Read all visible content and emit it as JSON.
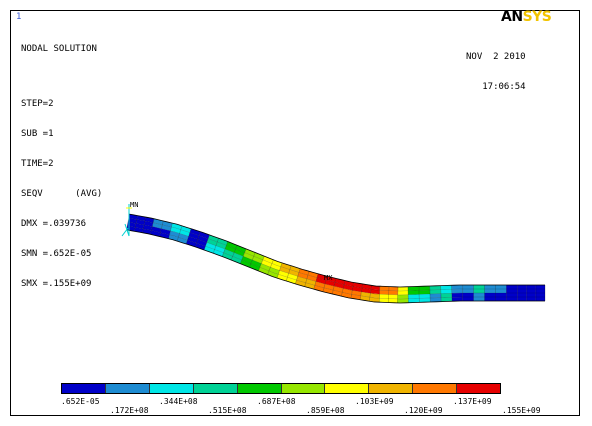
{
  "window_number": "1",
  "logo": {
    "part1": "AN",
    "part2": "SYS"
  },
  "solution": {
    "title": "NODAL SOLUTION",
    "lines": [
      "STEP=2",
      "SUB =1",
      "TIME=2",
      "SEQV      (AVG)",
      "DMX =.039736",
      "SMN =.652E-05",
      "SMX =.155E+09"
    ]
  },
  "timestamp": {
    "date": "NOV  2 2010",
    "time": "17:06:54"
  },
  "markers": {
    "min": "MN",
    "max": "MX"
  },
  "legend": {
    "colors": [
      "#0000c8",
      "#1e8cd2",
      "#00e6e6",
      "#00d296",
      "#00c800",
      "#96e600",
      "#ffff00",
      "#f0b400",
      "#ff7800",
      "#e60000"
    ],
    "labels_top": [
      ".652E-05",
      ".344E+08",
      ".687E+08",
      ".103E+09",
      ".137E+09"
    ],
    "labels_bottom": [
      ".172E+08",
      ".515E+08",
      ".859E+08",
      ".120E+09",
      ".155E+09"
    ]
  },
  "contour_colors": {
    "blue": "#0000c8",
    "lightblue": "#1e8cd2",
    "cyan": "#00e6e6",
    "teal": "#00d296",
    "green": "#00c800",
    "lime": "#96e600",
    "yellow": "#ffff00",
    "gold": "#f0b400",
    "orange": "#ff7800",
    "red": "#e60000"
  }
}
